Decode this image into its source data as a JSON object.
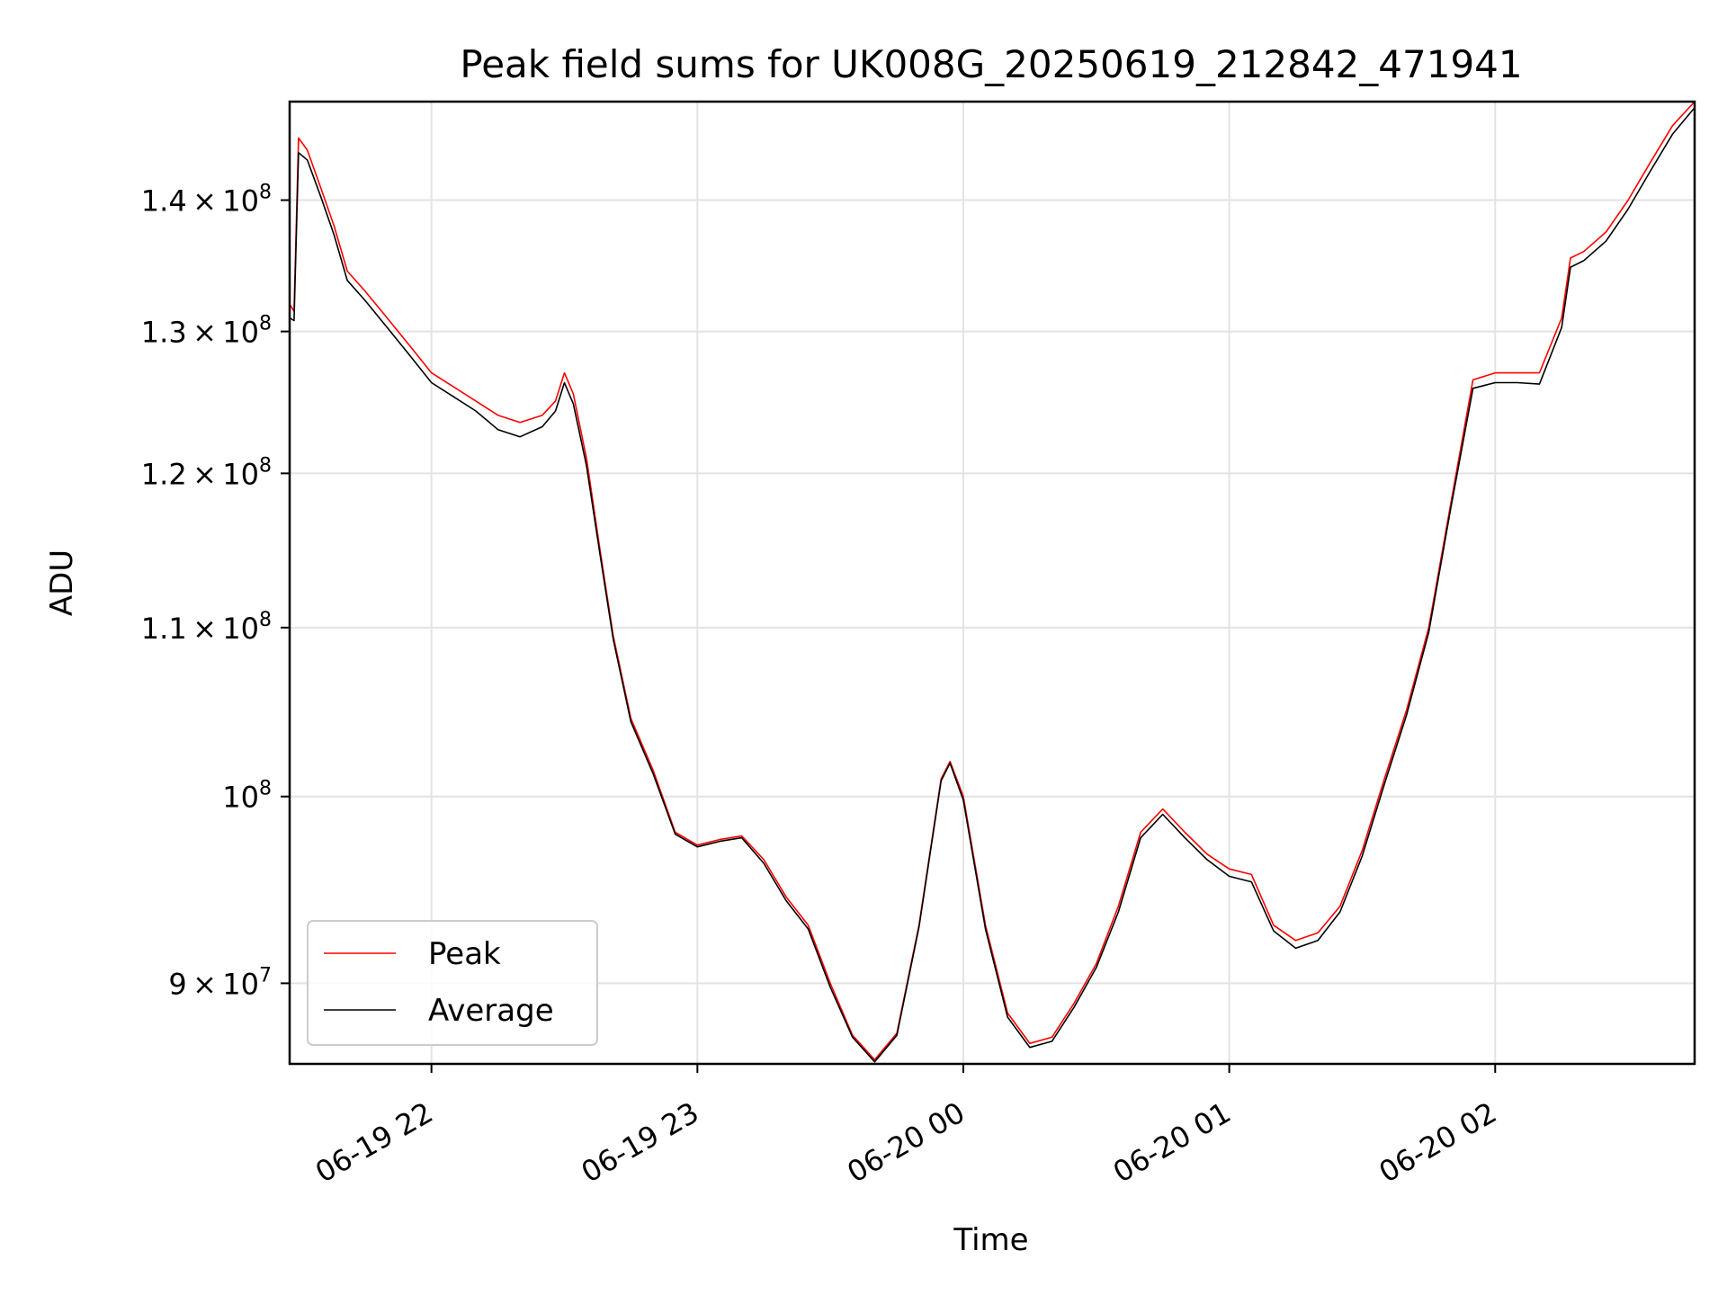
{
  "chart_data": {
    "type": "line",
    "title": "Peak field sums for UK008G_20250619_212842_471941",
    "xlabel": "Time",
    "ylabel": "ADU",
    "y_scale": "log",
    "xlim": [
      "2025-06-19 21:28",
      "2025-06-20 02:45"
    ],
    "ylim": [
      86000000,
      148000000
    ],
    "grid": true,
    "legend_position": "lower-left",
    "x_ticks": [
      {
        "time": "2025-06-19 22:00",
        "label": "06-19 22"
      },
      {
        "time": "2025-06-19 23:00",
        "label": "06-19 23"
      },
      {
        "time": "2025-06-20 00:00",
        "label": "06-20 00"
      },
      {
        "time": "2025-06-20 01:00",
        "label": "06-20 01"
      },
      {
        "time": "2025-06-20 02:00",
        "label": "06-20 02"
      }
    ],
    "y_ticks": [
      {
        "value": 90000000,
        "mantissa": "9",
        "exponent": "7"
      },
      {
        "value": 100000000,
        "mantissa": "",
        "exponent": "8"
      },
      {
        "value": 110000000,
        "mantissa": "1.1",
        "exponent": "8"
      },
      {
        "value": 120000000,
        "mantissa": "1.2",
        "exponent": "8"
      },
      {
        "value": 130000000,
        "mantissa": "1.3",
        "exponent": "8"
      },
      {
        "value": 140000000,
        "mantissa": "1.4",
        "exponent": "8"
      }
    ],
    "series": [
      {
        "name": "Peak",
        "color": "#ff0000",
        "points": [
          [
            "2025-06-19 21:28",
            132000000
          ],
          [
            "2025-06-19 21:29",
            131500000
          ],
          [
            "2025-06-19 21:30",
            145000000
          ],
          [
            "2025-06-19 21:32",
            144000000
          ],
          [
            "2025-06-19 21:35",
            141000000
          ],
          [
            "2025-06-19 21:38",
            138000000
          ],
          [
            "2025-06-19 21:41",
            134500000
          ],
          [
            "2025-06-19 21:45",
            133000000
          ],
          [
            "2025-06-19 21:50",
            131000000
          ],
          [
            "2025-06-19 21:55",
            129000000
          ],
          [
            "2025-06-19 22:00",
            127000000
          ],
          [
            "2025-06-19 22:05",
            126000000
          ],
          [
            "2025-06-19 22:10",
            125000000
          ],
          [
            "2025-06-19 22:15",
            124000000
          ],
          [
            "2025-06-19 22:20",
            123500000
          ],
          [
            "2025-06-19 22:25",
            124000000
          ],
          [
            "2025-06-19 22:28",
            125000000
          ],
          [
            "2025-06-19 22:30",
            127000000
          ],
          [
            "2025-06-19 22:32",
            125500000
          ],
          [
            "2025-06-19 22:35",
            121000000
          ],
          [
            "2025-06-19 22:38",
            115000000
          ],
          [
            "2025-06-19 22:41",
            109500000
          ],
          [
            "2025-06-19 22:45",
            104500000
          ],
          [
            "2025-06-19 22:50",
            101500000
          ],
          [
            "2025-06-19 22:55",
            98000000
          ],
          [
            "2025-06-19 23:00",
            97300000
          ],
          [
            "2025-06-19 23:05",
            97600000
          ],
          [
            "2025-06-19 23:10",
            97800000
          ],
          [
            "2025-06-19 23:15",
            96500000
          ],
          [
            "2025-06-19 23:20",
            94500000
          ],
          [
            "2025-06-19 23:25",
            93000000
          ],
          [
            "2025-06-19 23:30",
            90000000
          ],
          [
            "2025-06-19 23:35",
            87400000
          ],
          [
            "2025-06-19 23:40",
            86200000
          ],
          [
            "2025-06-19 23:45",
            87500000
          ],
          [
            "2025-06-19 23:50",
            93000000
          ],
          [
            "2025-06-19 23:55",
            101000000
          ],
          [
            "2025-06-19 23:57",
            102000000
          ],
          [
            "2025-06-20 00:00",
            100000000
          ],
          [
            "2025-06-20 00:05",
            93000000
          ],
          [
            "2025-06-20 00:10",
            88500000
          ],
          [
            "2025-06-20 00:15",
            87000000
          ],
          [
            "2025-06-20 00:20",
            87300000
          ],
          [
            "2025-06-20 00:25",
            89000000
          ],
          [
            "2025-06-20 00:30",
            91000000
          ],
          [
            "2025-06-20 00:35",
            94000000
          ],
          [
            "2025-06-20 00:40",
            98000000
          ],
          [
            "2025-06-20 00:45",
            99300000
          ],
          [
            "2025-06-20 00:50",
            98000000
          ],
          [
            "2025-06-20 00:55",
            96800000
          ],
          [
            "2025-06-20 01:00",
            96000000
          ],
          [
            "2025-06-20 01:05",
            95700000
          ],
          [
            "2025-06-20 01:10",
            93000000
          ],
          [
            "2025-06-20 01:15",
            92200000
          ],
          [
            "2025-06-20 01:20",
            92600000
          ],
          [
            "2025-06-20 01:25",
            94000000
          ],
          [
            "2025-06-20 01:30",
            97000000
          ],
          [
            "2025-06-20 01:35",
            101000000
          ],
          [
            "2025-06-20 01:40",
            105000000
          ],
          [
            "2025-06-20 01:45",
            110000000
          ],
          [
            "2025-06-20 01:50",
            118000000
          ],
          [
            "2025-06-20 01:55",
            126500000
          ],
          [
            "2025-06-20 02:00",
            127000000
          ],
          [
            "2025-06-20 02:05",
            127000000
          ],
          [
            "2025-06-20 02:10",
            127000000
          ],
          [
            "2025-06-20 02:15",
            131000000
          ],
          [
            "2025-06-20 02:17",
            135500000
          ],
          [
            "2025-06-20 02:20",
            136000000
          ],
          [
            "2025-06-20 02:25",
            137500000
          ],
          [
            "2025-06-20 02:30",
            140000000
          ],
          [
            "2025-06-20 02:35",
            143000000
          ],
          [
            "2025-06-20 02:40",
            146000000
          ],
          [
            "2025-06-20 02:45",
            148000000
          ]
        ]
      },
      {
        "name": "Average",
        "color": "#000000",
        "points": [
          [
            "2025-06-19 21:28",
            131000000
          ],
          [
            "2025-06-19 21:29",
            130800000
          ],
          [
            "2025-06-19 21:30",
            143800000
          ],
          [
            "2025-06-19 21:32",
            143200000
          ],
          [
            "2025-06-19 21:35",
            140300000
          ],
          [
            "2025-06-19 21:38",
            137300000
          ],
          [
            "2025-06-19 21:41",
            133800000
          ],
          [
            "2025-06-19 21:45",
            132300000
          ],
          [
            "2025-06-19 21:50",
            130300000
          ],
          [
            "2025-06-19 21:55",
            128300000
          ],
          [
            "2025-06-19 22:00",
            126300000
          ],
          [
            "2025-06-19 22:05",
            125300000
          ],
          [
            "2025-06-19 22:10",
            124300000
          ],
          [
            "2025-06-19 22:15",
            123000000
          ],
          [
            "2025-06-19 22:20",
            122500000
          ],
          [
            "2025-06-19 22:25",
            123200000
          ],
          [
            "2025-06-19 22:28",
            124300000
          ],
          [
            "2025-06-19 22:30",
            126300000
          ],
          [
            "2025-06-19 22:32",
            124800000
          ],
          [
            "2025-06-19 22:35",
            120500000
          ],
          [
            "2025-06-19 22:38",
            114700000
          ],
          [
            "2025-06-19 22:41",
            109300000
          ],
          [
            "2025-06-19 22:45",
            104300000
          ],
          [
            "2025-06-19 22:50",
            101300000
          ],
          [
            "2025-06-19 22:55",
            97900000
          ],
          [
            "2025-06-19 23:00",
            97200000
          ],
          [
            "2025-06-19 23:05",
            97500000
          ],
          [
            "2025-06-19 23:10",
            97700000
          ],
          [
            "2025-06-19 23:15",
            96300000
          ],
          [
            "2025-06-19 23:20",
            94300000
          ],
          [
            "2025-06-19 23:25",
            92800000
          ],
          [
            "2025-06-19 23:30",
            89800000
          ],
          [
            "2025-06-19 23:35",
            87300000
          ],
          [
            "2025-06-19 23:40",
            86100000
          ],
          [
            "2025-06-19 23:45",
            87400000
          ],
          [
            "2025-06-19 23:50",
            92900000
          ],
          [
            "2025-06-19 23:55",
            100900000
          ],
          [
            "2025-06-19 23:57",
            101900000
          ],
          [
            "2025-06-20 00:00",
            99800000
          ],
          [
            "2025-06-20 00:05",
            92800000
          ],
          [
            "2025-06-20 00:10",
            88300000
          ],
          [
            "2025-06-20 00:15",
            86800000
          ],
          [
            "2025-06-20 00:20",
            87100000
          ],
          [
            "2025-06-20 00:25",
            88800000
          ],
          [
            "2025-06-20 00:30",
            90800000
          ],
          [
            "2025-06-20 00:35",
            93700000
          ],
          [
            "2025-06-20 00:40",
            97700000
          ],
          [
            "2025-06-20 00:45",
            99000000
          ],
          [
            "2025-06-20 00:50",
            97700000
          ],
          [
            "2025-06-20 00:55",
            96500000
          ],
          [
            "2025-06-20 01:00",
            95600000
          ],
          [
            "2025-06-20 01:05",
            95300000
          ],
          [
            "2025-06-20 01:10",
            92700000
          ],
          [
            "2025-06-20 01:15",
            91800000
          ],
          [
            "2025-06-20 01:20",
            92200000
          ],
          [
            "2025-06-20 01:25",
            93700000
          ],
          [
            "2025-06-20 01:30",
            96700000
          ],
          [
            "2025-06-20 01:35",
            100700000
          ],
          [
            "2025-06-20 01:40",
            104700000
          ],
          [
            "2025-06-20 01:45",
            109700000
          ],
          [
            "2025-06-20 01:50",
            117700000
          ],
          [
            "2025-06-20 01:55",
            125900000
          ],
          [
            "2025-06-20 02:00",
            126300000
          ],
          [
            "2025-06-20 02:05",
            126300000
          ],
          [
            "2025-06-20 02:10",
            126200000
          ],
          [
            "2025-06-20 02:15",
            130300000
          ],
          [
            "2025-06-20 02:17",
            134800000
          ],
          [
            "2025-06-20 02:20",
            135300000
          ],
          [
            "2025-06-20 02:25",
            136800000
          ],
          [
            "2025-06-20 02:30",
            139300000
          ],
          [
            "2025-06-20 02:35",
            142300000
          ],
          [
            "2025-06-20 02:40",
            145300000
          ],
          [
            "2025-06-20 02:45",
            147500000
          ]
        ]
      }
    ]
  }
}
